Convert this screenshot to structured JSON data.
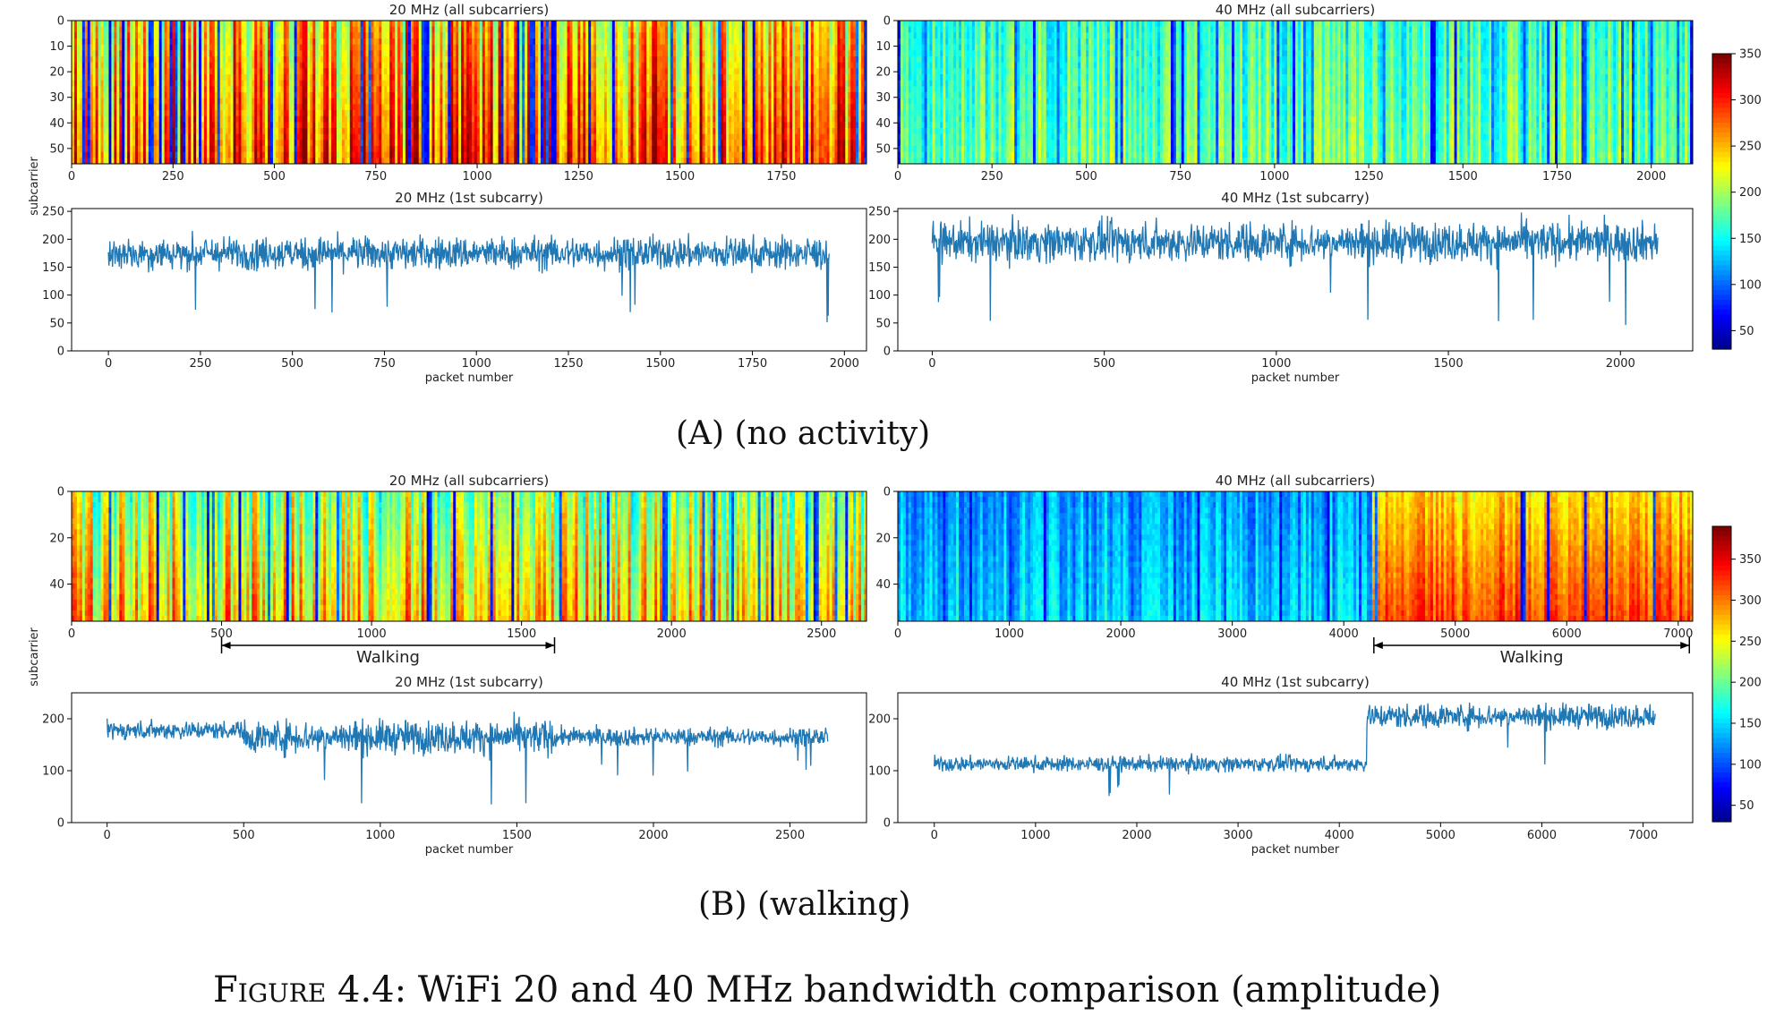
{
  "panels": [
    {
      "id": "a",
      "caption_letter": "A",
      "caption_text": "(no activity)",
      "subcarrier_label": "subcarrier",
      "heatmap_cmax": 350,
      "colorbar_ticks": [
        50,
        100,
        150,
        200,
        250,
        300,
        350
      ],
      "plots": [
        {
          "title": "20 MHz (all subcarriers)",
          "type": "heatmap",
          "xlim": [
            0,
            1960
          ],
          "xticks": [
            0,
            250,
            500,
            750,
            1000,
            1250,
            1500,
            1750
          ],
          "ylim": [
            0,
            56
          ],
          "yticks": [
            0,
            10,
            20,
            30,
            40,
            50
          ],
          "level": 0.66,
          "variability": 0.45
        },
        {
          "title": "40 MHz (all subcarriers)",
          "type": "heatmap",
          "xlim": [
            0,
            2110
          ],
          "xticks": [
            0,
            250,
            500,
            750,
            1000,
            1250,
            1500,
            1750,
            2000
          ],
          "ylim": [
            0,
            56
          ],
          "yticks": [
            0,
            10,
            20,
            30,
            40,
            50
          ],
          "level": 0.43,
          "variability": 0.25
        },
        {
          "title": "20 MHz (1st subcarry)",
          "type": "line",
          "xlim": [
            -100,
            2060
          ],
          "xticks": [
            0,
            250,
            500,
            750,
            1000,
            1250,
            1500,
            1750,
            2000
          ],
          "ylim": [
            0,
            255
          ],
          "yticks": [
            0,
            50,
            100,
            150,
            200,
            250
          ],
          "xlabel": "packet number",
          "n": 1960,
          "segments": [
            {
              "from": 0,
              "to": 1960,
              "mean": 175,
              "amp": 50
            }
          ]
        },
        {
          "title": "40 MHz (1st subcarry)",
          "type": "line",
          "xlim": [
            -100,
            2210
          ],
          "xticks": [
            0,
            500,
            1000,
            1500,
            2000
          ],
          "ylim": [
            0,
            255
          ],
          "yticks": [
            0,
            50,
            100,
            150,
            200,
            250
          ],
          "xlabel": "packet number",
          "n": 2110,
          "segments": [
            {
              "from": 0,
              "to": 2110,
              "mean": 195,
              "amp": 60
            }
          ]
        }
      ]
    },
    {
      "id": "b",
      "caption_letter": "B",
      "caption_text": "(walking)",
      "subcarrier_label": "subcarrier",
      "heatmap_cmax": 390,
      "colorbar_ticks": [
        50,
        100,
        150,
        200,
        250,
        300,
        350
      ],
      "plots": [
        {
          "title": "20 MHz (all subcarriers)",
          "type": "heatmap",
          "xlim": [
            0,
            2650
          ],
          "xticks": [
            0,
            500,
            1000,
            1500,
            2000,
            2500
          ],
          "ylim": [
            0,
            56
          ],
          "yticks": [
            0,
            20,
            40
          ],
          "level": 0.52,
          "variability": 0.4,
          "annotation": {
            "label": "Walking",
            "from": 500,
            "to": 1610
          }
        },
        {
          "title": "40 MHz (all subcarriers)",
          "type": "heatmap",
          "xlim": [
            0,
            7130
          ],
          "xticks": [
            0,
            1000,
            2000,
            3000,
            4000,
            5000,
            6000,
            7000
          ],
          "ylim": [
            0,
            56
          ],
          "yticks": [
            0,
            20,
            40
          ],
          "level": 0.28,
          "variability": 0.18,
          "walk_from": 4270,
          "walk_level": 0.66,
          "annotation": {
            "label": "Walking",
            "from": 4270,
            "to": 7100
          }
        },
        {
          "title": "20 MHz (1st subcarry)",
          "type": "line",
          "xlim": [
            -130,
            2780
          ],
          "xticks": [
            0,
            500,
            1000,
            1500,
            2000,
            2500
          ],
          "ylim": [
            0,
            250
          ],
          "yticks": [
            0,
            100,
            200
          ],
          "xlabel": "packet number",
          "n": 2640,
          "segments": [
            {
              "from": 0,
              "to": 500,
              "mean": 178,
              "amp": 30
            },
            {
              "from": 500,
              "to": 1650,
              "mean": 165,
              "amp": 55
            },
            {
              "from": 1650,
              "to": 2640,
              "mean": 165,
              "amp": 30
            }
          ]
        },
        {
          "title": "40 MHz (1st subcarry)",
          "type": "line",
          "xlim": [
            -360,
            7490
          ],
          "xticks": [
            0,
            1000,
            2000,
            3000,
            4000,
            5000,
            6000,
            7000
          ],
          "ylim": [
            0,
            250
          ],
          "yticks": [
            0,
            100,
            200
          ],
          "xlabel": "packet number",
          "n": 7130,
          "segments": [
            {
              "from": 0,
              "to": 4270,
              "mean": 113,
              "amp": 25
            },
            {
              "from": 4270,
              "to": 7130,
              "mean": 205,
              "amp": 40
            }
          ]
        }
      ]
    }
  ],
  "figure_caption": {
    "label": "Figure 4.4:",
    "text": "WiFi 20 and 40 MHz bandwidth comparison (amplitude)"
  },
  "colors": {
    "line": "#1f77b4",
    "axis": "#000000"
  },
  "chart_data": [
    {
      "type": "heatmap",
      "title": "20 MHz (all subcarriers)",
      "xlim": [
        0,
        1960
      ],
      "ylim": [
        0,
        56
      ],
      "colorbar": [
        50,
        350
      ]
    },
    {
      "type": "heatmap",
      "title": "40 MHz (all subcarriers)",
      "xlim": [
        0,
        2110
      ],
      "ylim": [
        0,
        56
      ],
      "colorbar": [
        50,
        350
      ]
    },
    {
      "type": "line",
      "title": "20 MHz (1st subcarry)",
      "xlabel": "packet number",
      "ylim": [
        0,
        250
      ],
      "approx_mean": 175
    },
    {
      "type": "line",
      "title": "40 MHz (1st subcarry)",
      "xlabel": "packet number",
      "ylim": [
        0,
        250
      ],
      "approx_mean": 195
    },
    {
      "type": "heatmap",
      "title": "20 MHz (all subcarriers)",
      "xlim": [
        0,
        2650
      ],
      "ylim": [
        0,
        56
      ],
      "annotation": "Walking 500–1610"
    },
    {
      "type": "heatmap",
      "title": "40 MHz (all subcarriers)",
      "xlim": [
        0,
        7130
      ],
      "ylim": [
        0,
        56
      ],
      "annotation": "Walking 4270–7100"
    },
    {
      "type": "line",
      "title": "20 MHz (1st subcarry)",
      "xlabel": "packet number",
      "ylim": [
        0,
        250
      ],
      "approx_mean": 170
    },
    {
      "type": "line",
      "title": "40 MHz (1st subcarry)",
      "xlabel": "packet number",
      "ylim": [
        0,
        250
      ],
      "segments": [
        {
          "x": [
            0,
            4270
          ],
          "approx_mean": 113
        },
        {
          "x": [
            4270,
            7130
          ],
          "approx_mean": 205
        }
      ]
    }
  ]
}
